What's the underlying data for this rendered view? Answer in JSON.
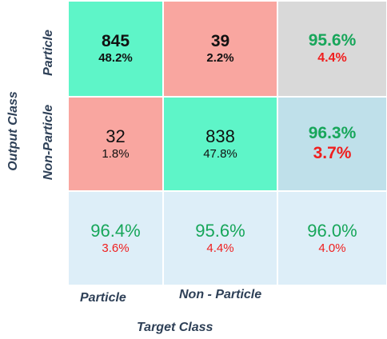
{
  "chart_data": {
    "type": "table",
    "title": "",
    "xlabel": "Target Class",
    "ylabel": "Output Class",
    "column_labels": [
      "Particle",
      "Non - Particle"
    ],
    "row_labels": [
      "Particle",
      "Non-Particle"
    ],
    "cells": [
      [
        {
          "count": "845",
          "percent": "48.2%"
        },
        {
          "count": "39",
          "percent": "2.2%"
        },
        {
          "correct": "95.6%",
          "error": "4.4%"
        }
      ],
      [
        {
          "count": "32",
          "percent": "1.8%"
        },
        {
          "count": "838",
          "percent": "47.8%"
        },
        {
          "correct": "96.3%",
          "error": "3.7%"
        }
      ],
      [
        {
          "correct": "96.4%",
          "error": "3.6%"
        },
        {
          "correct": "95.6%",
          "error": "4.4%"
        },
        {
          "correct": "96.0%",
          "error": "4.0%"
        }
      ]
    ],
    "colors": {
      "correct_cell": "#5ef5c8",
      "incorrect_cell": "#f9a6a0",
      "row_summary_top": "#d9d9d9",
      "row_summary_bottom": "#bfe0ea",
      "bottom_row": "#ddeef8",
      "count_text": "#111111",
      "correct_text": "#17a65a",
      "error_text": "#f01e1e",
      "axis_text": "#2e4057"
    }
  }
}
